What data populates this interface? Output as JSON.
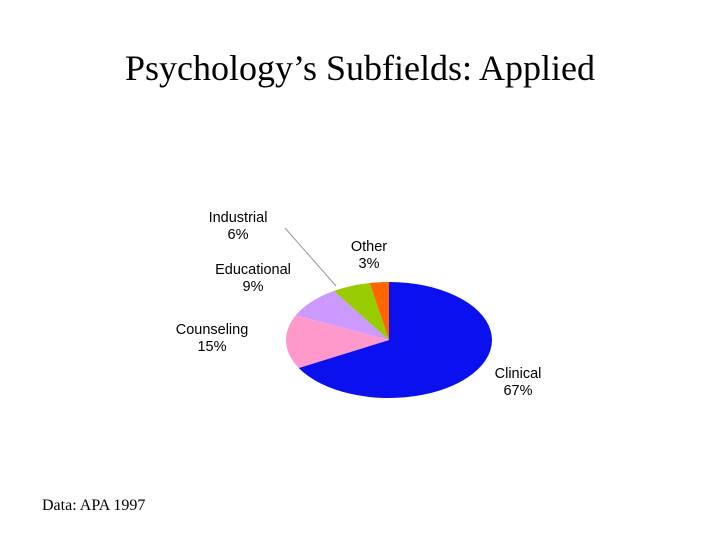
{
  "chart_data": {
    "type": "pie",
    "title": "Psychology’s Subfields: Applied",
    "categories": [
      "Clinical",
      "Counseling",
      "Educational",
      "Industrial",
      "Other"
    ],
    "values": [
      67,
      15,
      9,
      6,
      3
    ],
    "value_labels": [
      "67%",
      "15%",
      "9%",
      "6%",
      "3%"
    ],
    "colors": [
      "#0a10ee",
      "#ff99cc",
      "#cc99ff",
      "#99cc00",
      "#ff6600"
    ],
    "source": "Data: APA 1997"
  }
}
